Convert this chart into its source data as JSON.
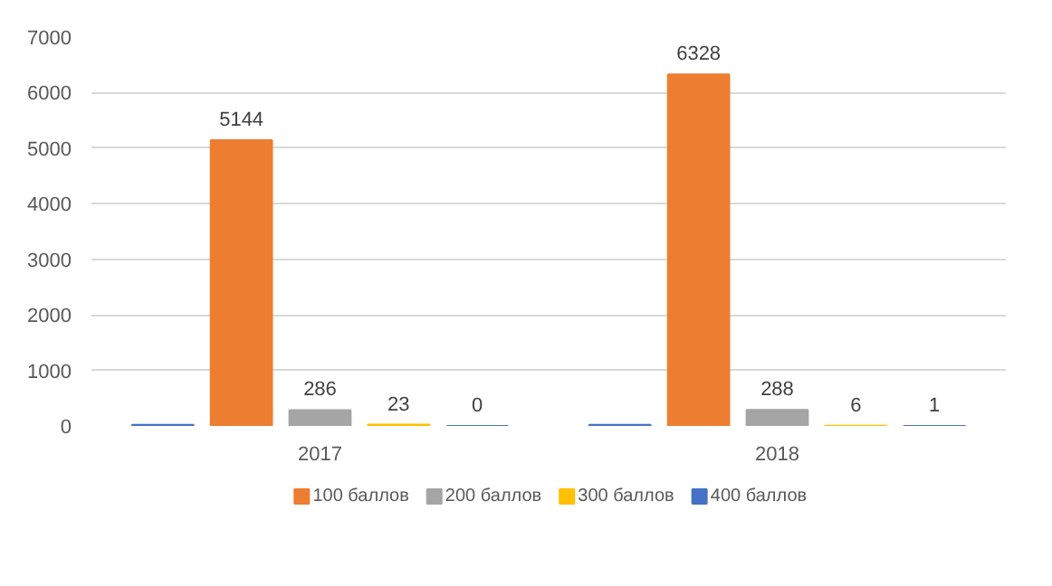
{
  "chart_data": {
    "type": "bar",
    "categories": [
      "2017",
      "2018"
    ],
    "series": [
      {
        "color": "#4472c4",
        "values": [
          20,
          20
        ],
        "value_labels": [
          null,
          null
        ]
      },
      {
        "name": "100 баллов",
        "color": "#ed7d31",
        "values": [
          5144,
          6328
        ],
        "value_labels": [
          "5144",
          "6328"
        ]
      },
      {
        "name": "200 баллов",
        "color": "#a5a5a5",
        "values": [
          286,
          288
        ],
        "value_labels": [
          "286",
          "288"
        ]
      },
      {
        "name": "300 баллов",
        "color": "#ffc000",
        "values": [
          23,
          6
        ],
        "value_labels": [
          "23",
          "6"
        ]
      },
      {
        "name": "400 баллов",
        "color": "#4472c4",
        "values": [
          0,
          1
        ],
        "value_labels": [
          "0",
          "1"
        ]
      }
    ],
    "ylim": [
      0,
      7000
    ],
    "yticks": [
      0,
      1000,
      2000,
      3000,
      4000,
      5000,
      6000,
      7000
    ],
    "grid": "y",
    "legend": "bottom"
  }
}
